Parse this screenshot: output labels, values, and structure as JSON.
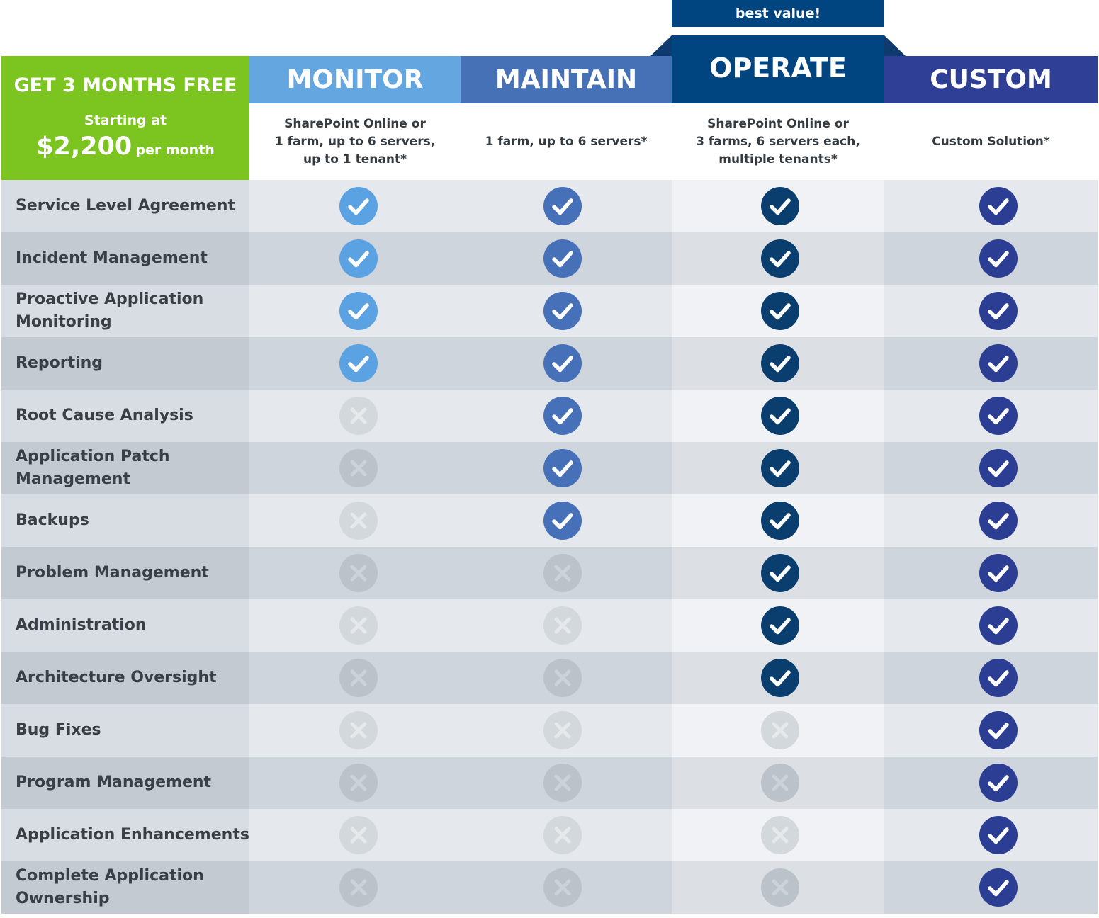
{
  "badge": "best value!",
  "promo": {
    "headline": "GET 3 MONTHS FREE",
    "starting": "Starting at",
    "price": "$2,200",
    "per": "per month"
  },
  "plans": [
    {
      "name": "MONITOR",
      "description": "SharePoint Online or\n1 farm, up to 6 servers,\nup to 1 tenant*",
      "color": "#64a6e0",
      "check_color": "#5aa2e2"
    },
    {
      "name": "MAINTAIN",
      "description": "1 farm, up to 6 servers*",
      "color": "#4771b6",
      "check_color": "#4670b8"
    },
    {
      "name": "OPERATE",
      "description": "SharePoint Online or\n3 farms, 6 servers each,\nmultiple tenants*",
      "color": "#004480",
      "check_color": "#0a3e6e"
    },
    {
      "name": "CUSTOM",
      "description": "Custom Solution*",
      "color": "#2e3f95",
      "check_color": "#2c3e94"
    }
  ],
  "features": [
    {
      "name": "Service Level Agreement",
      "included": [
        true,
        true,
        true,
        true
      ]
    },
    {
      "name": "Incident Management",
      "included": [
        true,
        true,
        true,
        true
      ]
    },
    {
      "name": "Proactive Application\nMonitoring",
      "included": [
        true,
        true,
        true,
        true
      ]
    },
    {
      "name": "Reporting",
      "included": [
        true,
        true,
        true,
        true
      ]
    },
    {
      "name": "Root Cause Analysis",
      "included": [
        false,
        true,
        true,
        true
      ]
    },
    {
      "name": "Application Patch\nManagement",
      "included": [
        false,
        true,
        true,
        true
      ]
    },
    {
      "name": "Backups",
      "included": [
        false,
        true,
        true,
        true
      ]
    },
    {
      "name": "Problem Management",
      "included": [
        false,
        false,
        true,
        true
      ]
    },
    {
      "name": "Administration",
      "included": [
        false,
        false,
        true,
        true
      ]
    },
    {
      "name": "Architecture Oversight",
      "included": [
        false,
        false,
        true,
        true
      ]
    },
    {
      "name": "Bug Fixes",
      "included": [
        false,
        false,
        false,
        true
      ]
    },
    {
      "name": "Program Management",
      "included": [
        false,
        false,
        false,
        true
      ]
    },
    {
      "name": "Application Enhancements",
      "included": [
        false,
        false,
        false,
        true
      ]
    },
    {
      "name": "Complete Application\nOwnership",
      "included": [
        false,
        false,
        false,
        true
      ]
    }
  ]
}
